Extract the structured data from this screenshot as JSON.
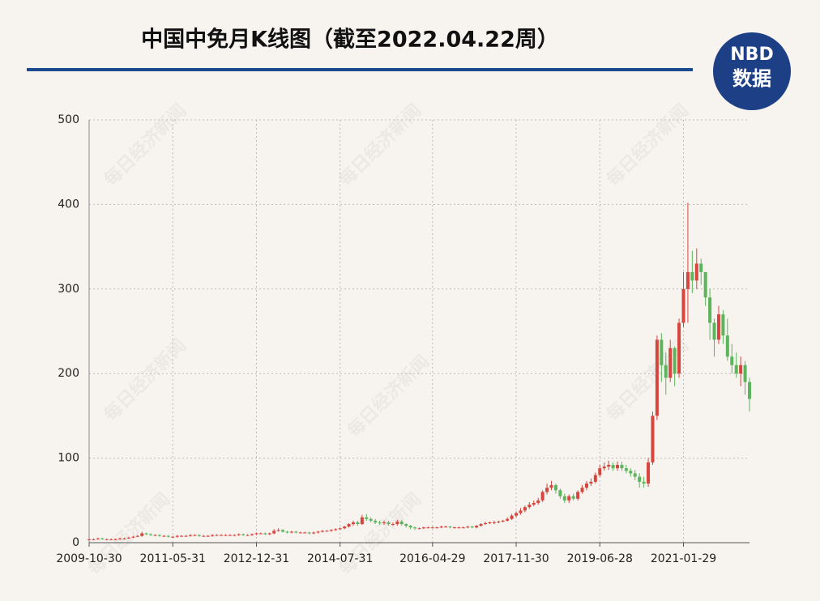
{
  "chart_data": {
    "type": "candlestick",
    "title": "中国中免月K线图（截至2022.04.22周）",
    "categories": [
      "2009-10-30",
      null,
      null,
      null,
      null,
      null,
      null,
      null,
      null,
      null,
      null,
      null,
      null,
      null,
      null,
      null,
      null,
      null,
      null,
      "2011-05-31",
      null,
      null,
      null,
      null,
      null,
      null,
      null,
      null,
      null,
      null,
      null,
      null,
      null,
      null,
      null,
      null,
      null,
      null,
      "2012-12-31",
      null,
      null,
      null,
      null,
      null,
      null,
      null,
      null,
      null,
      null,
      null,
      null,
      null,
      null,
      null,
      null,
      null,
      null,
      "2014-07-31",
      null,
      null,
      null,
      null,
      null,
      null,
      null,
      null,
      null,
      null,
      null,
      null,
      null,
      null,
      null,
      null,
      null,
      null,
      null,
      null,
      "2016-04-29",
      null,
      null,
      null,
      null,
      null,
      null,
      null,
      null,
      null,
      null,
      null,
      null,
      null,
      null,
      null,
      null,
      null,
      null,
      "2017-11-30",
      null,
      null,
      null,
      null,
      null,
      null,
      null,
      null,
      null,
      null,
      null,
      null,
      null,
      null,
      null,
      null,
      null,
      null,
      "2019-06-28",
      null,
      null,
      null,
      null,
      null,
      null,
      null,
      null,
      null,
      null,
      null,
      null,
      null,
      null,
      null,
      null,
      null,
      null,
      "2021-01-29",
      null,
      null,
      null,
      null,
      null,
      null,
      null,
      null,
      null,
      null,
      null,
      null,
      null,
      null,
      null
    ],
    "series": [
      {
        "open": [
          3.5,
          4,
          4,
          5,
          4,
          4,
          4,
          4,
          5,
          5,
          6,
          7,
          8,
          11,
          10,
          9,
          9,
          8,
          8,
          7,
          7,
          8,
          8,
          8,
          9,
          9,
          8,
          8,
          8,
          9,
          9,
          9,
          9,
          9,
          9,
          10,
          9,
          9,
          10,
          11,
          11,
          10,
          11,
          14,
          15,
          13,
          12,
          13,
          12,
          12,
          12,
          11,
          12,
          13,
          14,
          14,
          15,
          16,
          17,
          19,
          22,
          24,
          22,
          30,
          28,
          26,
          24,
          23,
          24,
          22,
          22,
          25,
          22,
          20,
          18,
          17,
          17,
          18,
          18,
          18,
          18,
          19,
          19,
          18,
          18,
          18,
          18,
          19,
          18,
          20,
          22,
          23,
          24,
          24,
          25,
          26,
          28,
          32,
          35,
          38,
          42,
          45,
          47,
          50,
          60,
          65,
          68,
          62,
          55,
          50,
          55,
          52,
          60,
          65,
          70,
          72,
          80,
          88,
          90,
          92,
          88,
          92,
          88,
          85,
          82,
          78,
          72,
          70,
          95,
          150,
          240,
          210,
          195,
          230,
          200,
          260,
          300,
          320,
          310,
          330,
          320,
          290,
          260,
          240,
          270,
          245,
          220,
          210,
          200,
          210,
          190
        ],
        "high": [
          5,
          5,
          6,
          6,
          5,
          5,
          5,
          6,
          6,
          7,
          8,
          9,
          13,
          12,
          11,
          10,
          10,
          9,
          9,
          8,
          9,
          9,
          9,
          10,
          10,
          10,
          9,
          9,
          10,
          10,
          10,
          10,
          10,
          10,
          11,
          11,
          10,
          11,
          12,
          12,
          12,
          12,
          16,
          17,
          16,
          14,
          14,
          14,
          13,
          13,
          13,
          13,
          14,
          15,
          15,
          16,
          17,
          18,
          20,
          23,
          26,
          26,
          33,
          34,
          30,
          28,
          26,
          26,
          26,
          24,
          27,
          27,
          23,
          21,
          19,
          18,
          19,
          19,
          19,
          19,
          20,
          20,
          20,
          19,
          19,
          19,
          20,
          20,
          21,
          23,
          25,
          25,
          26,
          26,
          27,
          30,
          34,
          37,
          41,
          44,
          48,
          50,
          53,
          62,
          70,
          73,
          70,
          64,
          58,
          57,
          58,
          62,
          68,
          73,
          76,
          83,
          92,
          95,
          97,
          95,
          96,
          96,
          92,
          88,
          86,
          82,
          78,
          100,
          155,
          245,
          248,
          225,
          240,
          232,
          265,
          320,
          402,
          345,
          348,
          336,
          320,
          300,
          265,
          280,
          275,
          265,
          235,
          225,
          220,
          215,
          195
        ],
        "low": [
          3,
          3,
          3.5,
          3.5,
          3,
          3,
          3,
          3.5,
          4,
          4.5,
          5.5,
          6.5,
          7,
          9,
          8,
          8,
          7,
          7,
          6,
          6,
          6,
          7,
          7,
          7,
          8,
          7,
          7,
          7,
          7,
          8,
          8,
          8,
          8,
          8,
          8,
          8,
          8,
          8,
          9,
          10,
          9,
          9,
          10,
          13,
          12,
          11,
          11,
          11,
          11,
          11,
          10,
          10,
          11,
          12,
          13,
          13,
          14,
          15,
          16,
          18,
          20,
          20,
          21,
          26,
          24,
          22,
          21,
          21,
          20,
          20,
          20,
          20,
          18,
          16,
          15,
          16,
          16,
          17,
          17,
          17,
          17,
          18,
          17,
          17,
          17,
          17,
          17,
          17,
          17,
          19,
          21,
          22,
          22,
          23,
          24,
          25,
          27,
          30,
          33,
          36,
          40,
          43,
          45,
          48,
          57,
          62,
          58,
          52,
          47,
          47,
          50,
          50,
          58,
          62,
          67,
          70,
          78,
          85,
          86,
          85,
          85,
          85,
          82,
          78,
          74,
          65,
          65,
          66,
          92,
          145,
          190,
          175,
          190,
          185,
          195,
          255,
          260,
          295,
          300,
          305,
          280,
          240,
          220,
          235,
          235,
          215,
          200,
          195,
          185,
          175,
          155
        ],
        "close": [
          4,
          4,
          5,
          4,
          4,
          4,
          4,
          5,
          5,
          6,
          7,
          8,
          11,
          10,
          9,
          9,
          8,
          8,
          7,
          7,
          8,
          8,
          8,
          9,
          9,
          8,
          8,
          8,
          9,
          9,
          9,
          9,
          9,
          9,
          10,
          9,
          9,
          10,
          11,
          11,
          10,
          11,
          14,
          15,
          13,
          12,
          13,
          12,
          12,
          12,
          11,
          12,
          13,
          14,
          14,
          15,
          16,
          17,
          19,
          22,
          24,
          22,
          30,
          28,
          26,
          24,
          23,
          24,
          22,
          22,
          25,
          22,
          20,
          18,
          17,
          17,
          18,
          18,
          18,
          18,
          19,
          19,
          18,
          18,
          18,
          18,
          19,
          18,
          20,
          22,
          23,
          24,
          24,
          25,
          26,
          28,
          32,
          35,
          38,
          42,
          45,
          47,
          50,
          60,
          65,
          68,
          62,
          55,
          50,
          55,
          52,
          60,
          65,
          70,
          72,
          80,
          88,
          90,
          92,
          88,
          92,
          88,
          85,
          82,
          78,
          72,
          70,
          95,
          150,
          240,
          210,
          195,
          230,
          200,
          260,
          300,
          320,
          310,
          330,
          320,
          290,
          260,
          240,
          270,
          245,
          220,
          210,
          200,
          210,
          190,
          170
        ]
      }
    ],
    "up_color": "#d7453f",
    "down_color": "#5cb55c",
    "ylim": [
      0,
      500
    ],
    "yticks": [
      0,
      100,
      200,
      300,
      400,
      500
    ],
    "grid": true
  },
  "logo": {
    "line1": "NBD",
    "line2": "数据"
  },
  "watermark": "每日经济新闻"
}
